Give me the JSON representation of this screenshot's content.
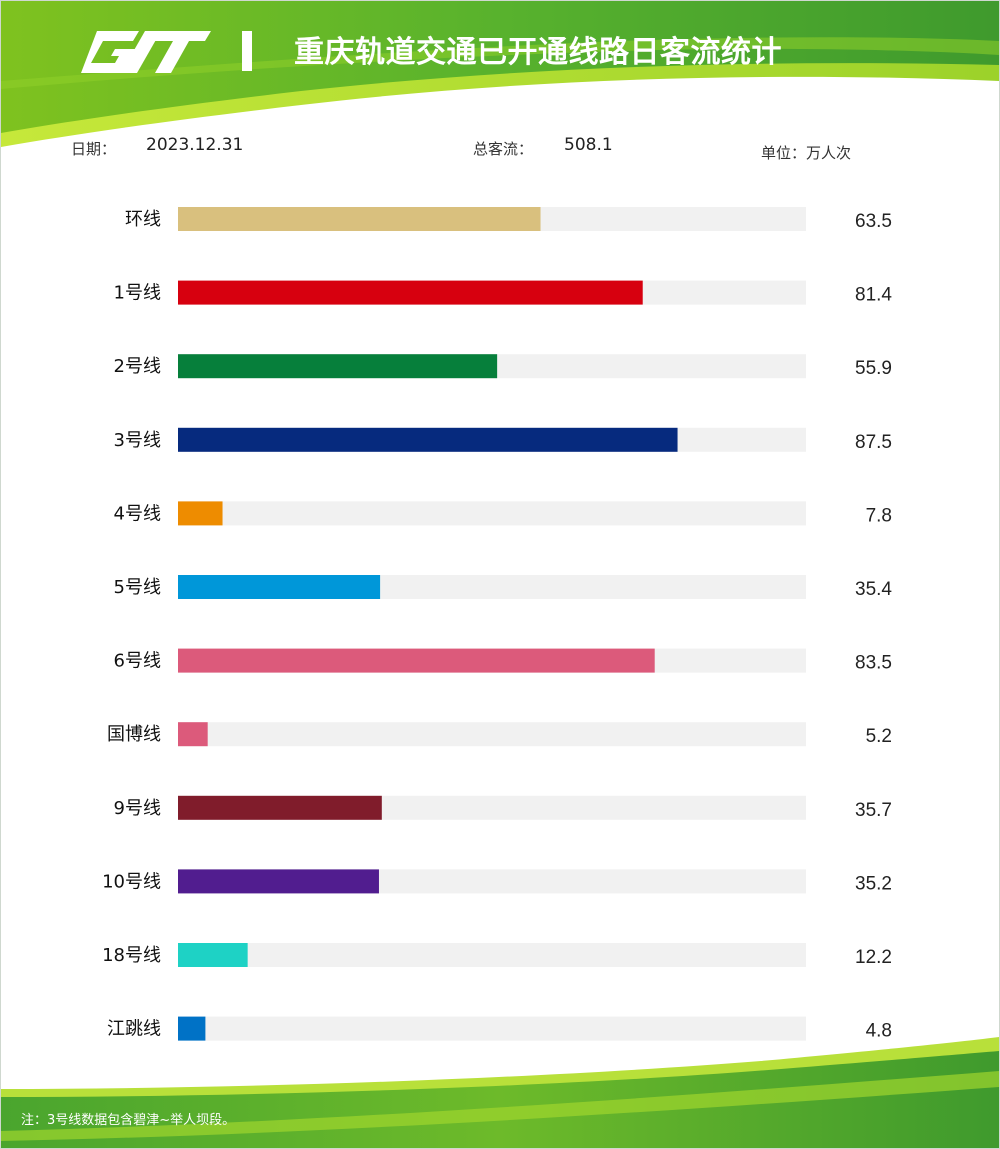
{
  "header": {
    "title": "重庆轨道交通已开通线路日客流统计"
  },
  "meta": {
    "date_label": "日期：",
    "date_value": "2023.12.31",
    "total_label": "总客流：",
    "total_value": "508.1",
    "unit_text": "单位：万人次"
  },
  "chart_data": {
    "type": "bar",
    "orientation": "horizontal",
    "categories": [
      "环线",
      "1号线",
      "2号线",
      "3号线",
      "4号线",
      "5号线",
      "6号线",
      "国博线",
      "9号线",
      "10号线",
      "18号线",
      "江跳线"
    ],
    "values": [
      63.5,
      81.4,
      55.9,
      87.5,
      7.8,
      35.4,
      83.5,
      5.2,
      35.7,
      35.2,
      12.2,
      4.8
    ],
    "value_labels": [
      "63.5",
      "81.4",
      "55.9",
      "87.5",
      "7.8",
      "35.4",
      "83.5",
      "5.2",
      "35.7",
      "35.2",
      "12.2",
      "4.8"
    ],
    "colors": [
      "#d9c07e",
      "#d7000f",
      "#067f3b",
      "#062a7e",
      "#ee8c00",
      "#0097d9",
      "#dc5a7b",
      "#dc5a7b",
      "#801c2b",
      "#511d8f",
      "#1ed2c5",
      "#0072c6"
    ],
    "track_color": "#f1f1f1",
    "xlim": [
      0,
      110
    ],
    "title": "",
    "xlabel": "",
    "ylabel": ""
  },
  "footer": {
    "note": "注：3号线数据包含碧津~举人坝段。"
  }
}
